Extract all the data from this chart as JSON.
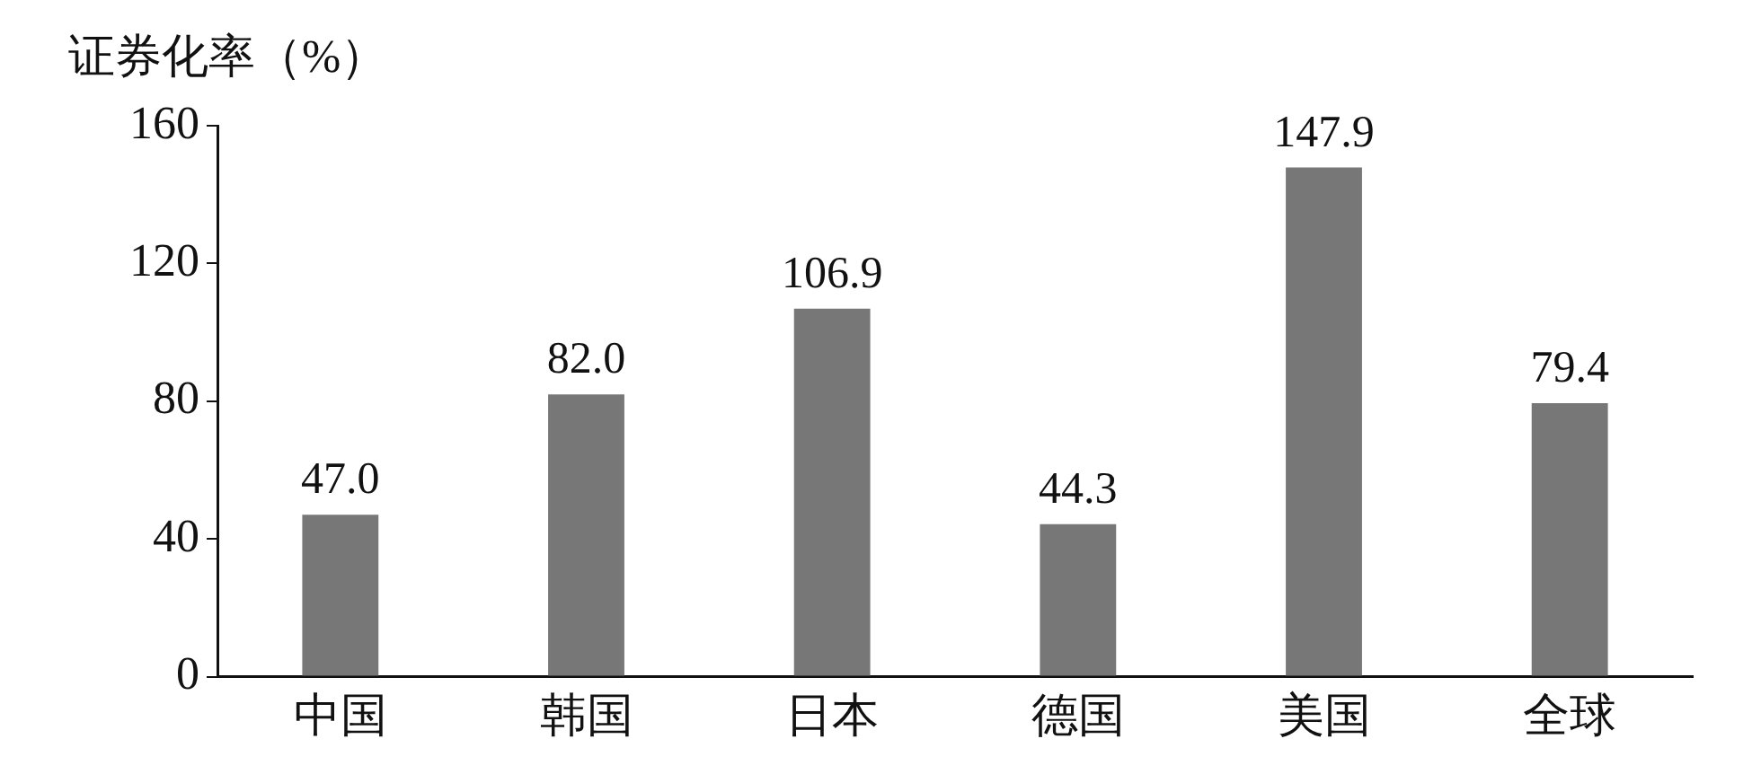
{
  "chart_data": {
    "type": "bar",
    "ylabel": "证券化率（%）",
    "categories": [
      "中国",
      "韩国",
      "日本",
      "德国",
      "美国",
      "全球"
    ],
    "values": [
      47.0,
      82.0,
      106.9,
      44.3,
      147.9,
      79.4
    ],
    "value_labels": [
      "47.0",
      "82.0",
      "106.9",
      "44.3",
      "147.9",
      "79.4"
    ],
    "color": "#777777",
    "ylim": [
      0,
      160
    ],
    "yticks": [
      0,
      40,
      80,
      120,
      160
    ],
    "grid": false,
    "legend": false
  }
}
